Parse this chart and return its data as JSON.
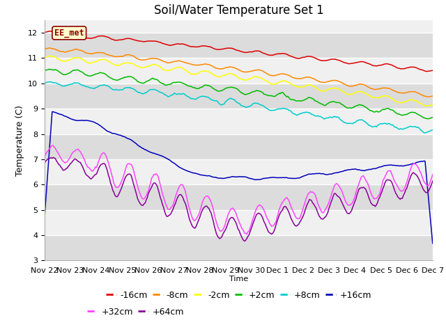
{
  "title": "Soil/Water Temperature Set 1",
  "xlabel": "Time",
  "ylabel": "Temperature (C)",
  "ylim": [
    3.0,
    12.5
  ],
  "yticks": [
    3.0,
    4.0,
    5.0,
    6.0,
    7.0,
    8.0,
    9.0,
    10.0,
    11.0,
    12.0
  ],
  "annotation_text": "EE_met",
  "annotation_color": "#8B0000",
  "annotation_bg": "#FFFFCC",
  "annotation_border": "#8B0000",
  "series": [
    {
      "label": "-16cm",
      "color": "#DD0000"
    },
    {
      "label": "-8cm",
      "color": "#FF8800"
    },
    {
      "label": "-2cm",
      "color": "#FFFF00"
    },
    {
      "label": "+2cm",
      "color": "#00BB00"
    },
    {
      "label": "+8cm",
      "color": "#00CCCC"
    },
    {
      "label": "+16cm",
      "color": "#0000BB"
    },
    {
      "label": "+32cm",
      "color": "#FF44FF"
    },
    {
      "label": "+64cm",
      "color": "#880099"
    }
  ],
  "background_color": "#FFFFFF",
  "band_colors": [
    "#DCDCDC",
    "#F0F0F0"
  ],
  "grid_color": "#FFFFFF",
  "num_points": 360,
  "date_labels": [
    "Nov 22",
    "Nov 23",
    "Nov 24",
    "Nov 25",
    "Nov 26",
    "Nov 27",
    "Nov 28",
    "Nov 29",
    "Nov 30",
    "Dec 1",
    "Dec 2",
    "Dec 3",
    "Dec 4",
    "Dec 5",
    "Dec 6",
    "Dec 7"
  ],
  "title_fontsize": 12,
  "tick_fontsize": 8,
  "legend_fontsize": 9
}
